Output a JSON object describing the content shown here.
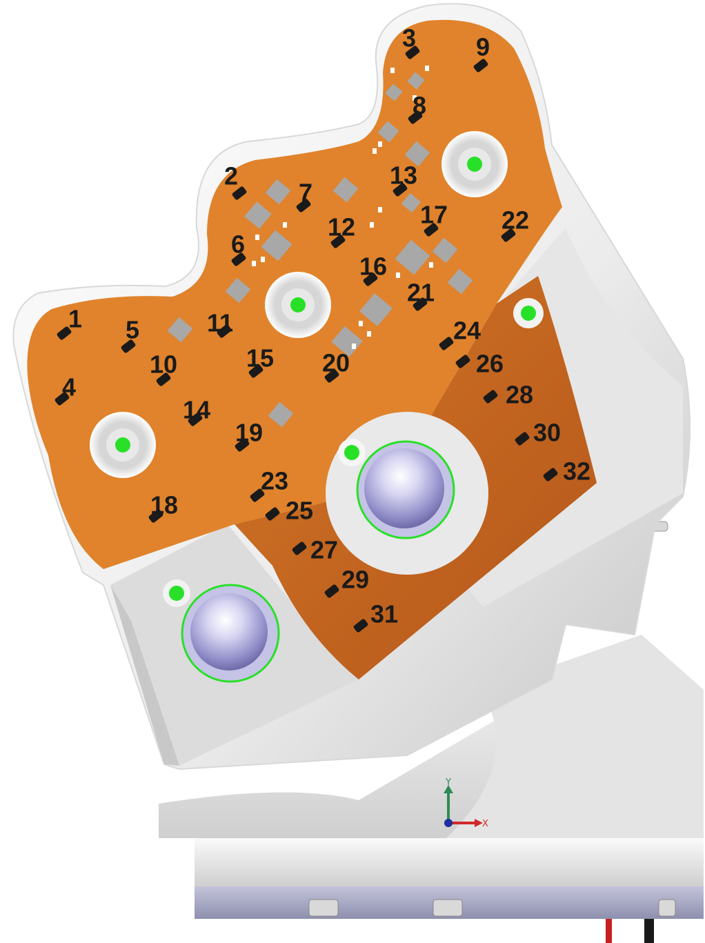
{
  "sensor_labels": [
    "1",
    "2",
    "3",
    "4",
    "5",
    "6",
    "7",
    "8",
    "9",
    "10",
    "11",
    "12",
    "13",
    "14",
    "15",
    "16",
    "17",
    "18",
    "19",
    "20",
    "21",
    "22",
    "23",
    "24",
    "25",
    "26",
    "27",
    "28",
    "29",
    "30",
    "31",
    "32"
  ],
  "axis": {
    "y_label": "Y",
    "x_label": "X"
  },
  "colors": {
    "pcb": "#e0832c",
    "pcb_dark": "#bf5f14",
    "housing": "#f0f0f0",
    "housing_shadow": "#c9c9c9",
    "mark_green": "#28e028",
    "dome": "#b8b6e0",
    "sensor": "#1a1a1a",
    "base_band": "#a8a9c4",
    "axis_y": "#2e8b57",
    "axis_x": "#d0282a"
  }
}
